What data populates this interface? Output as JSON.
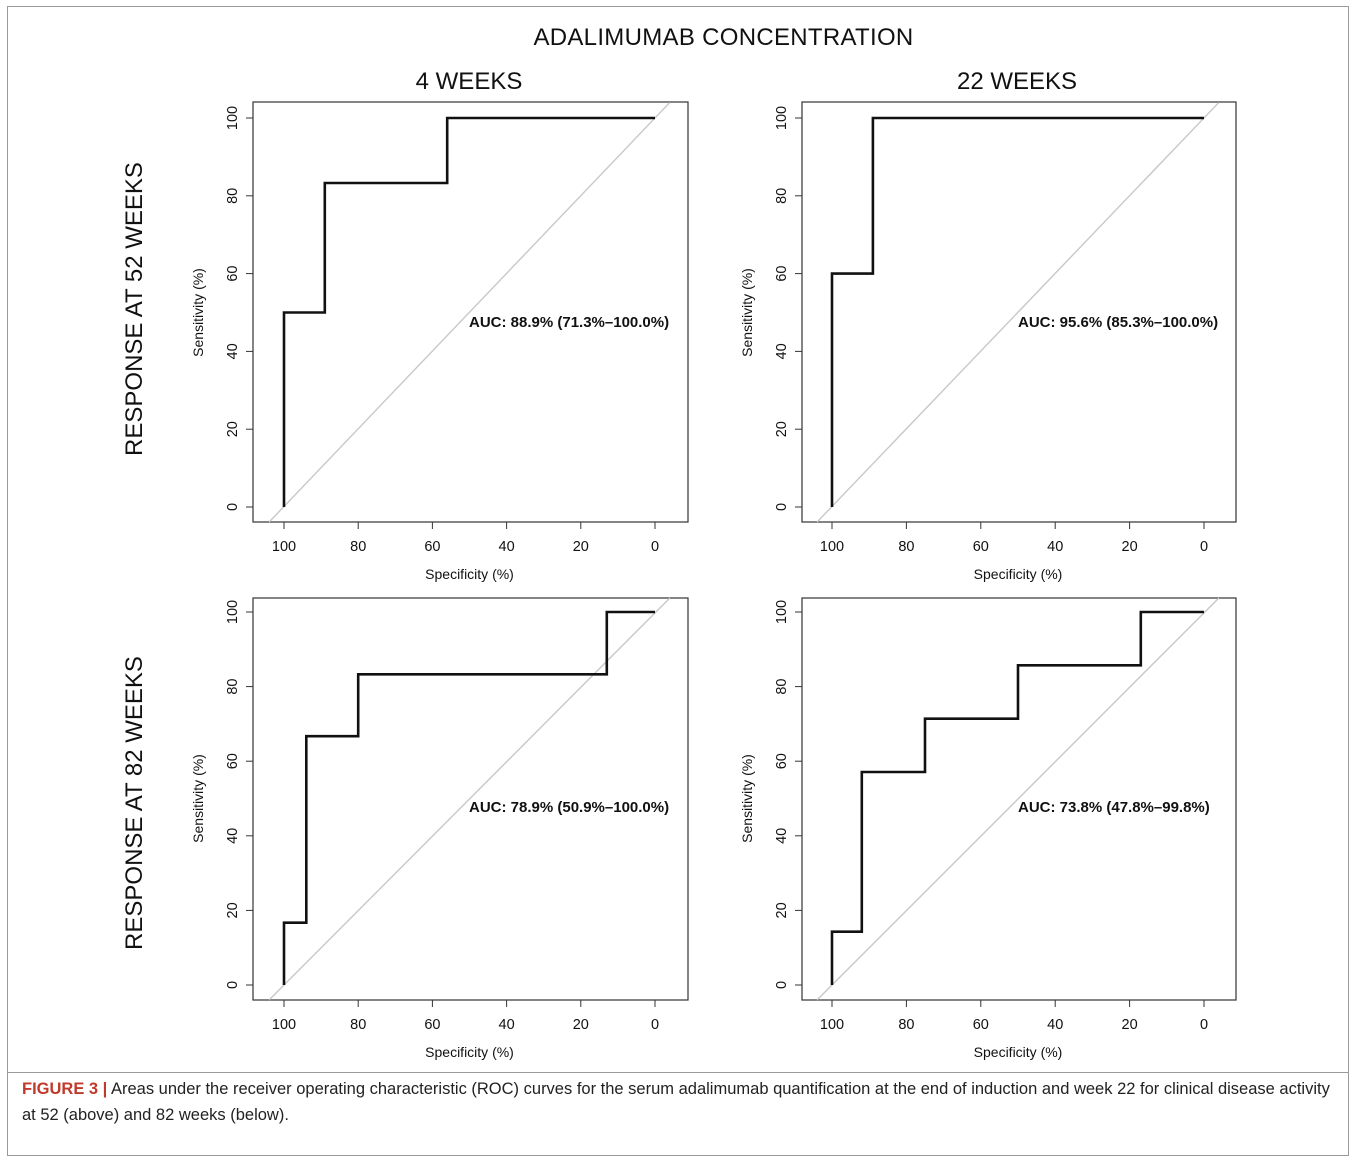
{
  "figure": {
    "main_title": "ADALIMUMAB CONCENTRATION",
    "col_titles": [
      "4 WEEKS",
      "22 WEEKS"
    ],
    "row_titles": [
      "RESPONSE AT 52 WEEKS",
      "RESPONSE AT 82 WEEKS"
    ],
    "caption_label": "FIGURE 3 |",
    "caption_text": " Areas under the receiver operating characteristic (ROC) curves for the serum adalimumab quantification at the end of induction and week 22 for clinical disease activity at 52 (above) and 82 weeks (below)."
  },
  "colors": {
    "curve": "#111111",
    "diagonal": "#c8c8c8",
    "caption_label": "#c0392b"
  },
  "chart_data": [
    {
      "type": "line",
      "title": "4 WEEKS",
      "row": "RESPONSE AT 52 WEEKS",
      "xlabel": "Specificity (%)",
      "ylabel": "Sensitivity (%)",
      "xlim": [
        100,
        0
      ],
      "ylim": [
        0,
        100
      ],
      "x_reversed": true,
      "xticks": [
        100,
        80,
        60,
        40,
        20,
        0
      ],
      "yticks": [
        0,
        20,
        40,
        60,
        80,
        100
      ],
      "grid": false,
      "annotation": "AUC: 88.9% (71.3%–100.0%)",
      "series": [
        {
          "x": [
            100,
            100,
            89,
            89,
            56,
            56,
            0
          ],
          "y": [
            0,
            50,
            50,
            83.3,
            83.3,
            100,
            100
          ]
        }
      ]
    },
    {
      "type": "line",
      "title": "22 WEEKS",
      "row": "RESPONSE AT 52 WEEKS",
      "xlabel": "Specificity (%)",
      "ylabel": "Sensitivity (%)",
      "xlim": [
        100,
        0
      ],
      "ylim": [
        0,
        100
      ],
      "x_reversed": true,
      "xticks": [
        100,
        80,
        60,
        40,
        20,
        0
      ],
      "yticks": [
        0,
        20,
        40,
        60,
        80,
        100
      ],
      "grid": false,
      "annotation": "AUC: 95.6% (85.3%–100.0%)",
      "series": [
        {
          "x": [
            100,
            100,
            89,
            89,
            0
          ],
          "y": [
            0,
            60,
            60,
            100,
            100
          ]
        }
      ]
    },
    {
      "type": "line",
      "title": "4 WEEKS",
      "row": "RESPONSE AT 82 WEEKS",
      "xlabel": "Specificity (%)",
      "ylabel": "Sensitivity (%)",
      "xlim": [
        100,
        0
      ],
      "ylim": [
        0,
        100
      ],
      "x_reversed": true,
      "xticks": [
        100,
        80,
        60,
        40,
        20,
        0
      ],
      "yticks": [
        0,
        20,
        40,
        60,
        80,
        100
      ],
      "grid": false,
      "annotation": "AUC: 78.9% (50.9%–100.0%)",
      "series": [
        {
          "x": [
            100,
            100,
            94,
            94,
            80,
            80,
            13,
            13,
            0
          ],
          "y": [
            0,
            16.7,
            16.7,
            66.7,
            66.7,
            83.3,
            83.3,
            100,
            100
          ]
        }
      ]
    },
    {
      "type": "line",
      "title": "22 WEEKS",
      "row": "RESPONSE AT 82 WEEKS",
      "xlabel": "Specificity (%)",
      "ylabel": "Sensitivity (%)",
      "xlim": [
        100,
        0
      ],
      "ylim": [
        0,
        100
      ],
      "x_reversed": true,
      "xticks": [
        100,
        80,
        60,
        40,
        20,
        0
      ],
      "yticks": [
        0,
        20,
        40,
        60,
        80,
        100
      ],
      "grid": false,
      "annotation": "AUC: 73.8% (47.8%–99.8%)",
      "series": [
        {
          "x": [
            100,
            100,
            92,
            92,
            75,
            75,
            50,
            50,
            17,
            17,
            0
          ],
          "y": [
            0,
            14.3,
            14.3,
            57.1,
            57.1,
            71.4,
            71.4,
            85.7,
            85.7,
            100,
            100
          ]
        }
      ]
    }
  ]
}
